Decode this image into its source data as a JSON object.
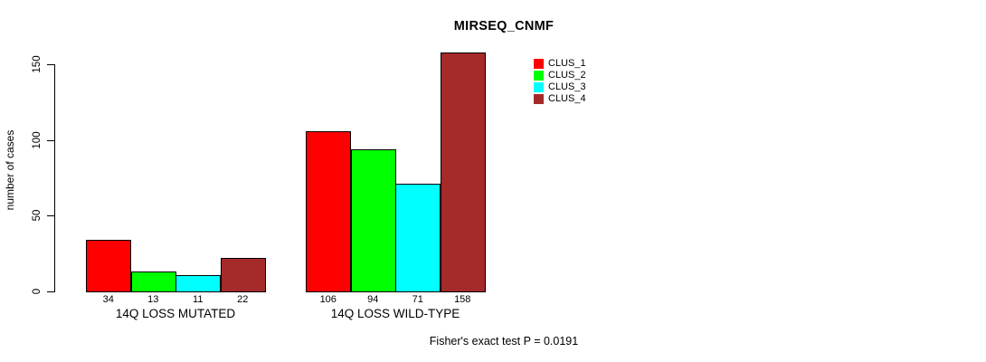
{
  "chart_data": {
    "type": "bar",
    "title": "MIRSEQ_CNMF",
    "ylabel": "number of cases",
    "xlabel": "",
    "categories": [
      "14Q LOSS MUTATED",
      "14Q LOSS WILD-TYPE"
    ],
    "series": [
      {
        "name": "CLUS_1",
        "color": "#ff0000",
        "values": [
          34,
          106
        ]
      },
      {
        "name": "CLUS_2",
        "color": "#00ff00",
        "values": [
          13,
          94
        ]
      },
      {
        "name": "CLUS_3",
        "color": "#00ffff",
        "values": [
          11,
          71
        ]
      },
      {
        "name": "CLUS_4",
        "color": "#a52a2a",
        "values": [
          22,
          158
        ]
      }
    ],
    "yticks": [
      0,
      50,
      100,
      150
    ],
    "ylim": [
      0,
      158
    ],
    "grid": false,
    "legend_position": "top-right",
    "bar_value_labels_shown": true,
    "annotation": "Fisher's exact test P = 0.0191",
    "axis_color": "#000000",
    "bar_border_color": "#000000",
    "background_color": "#ffffff"
  }
}
